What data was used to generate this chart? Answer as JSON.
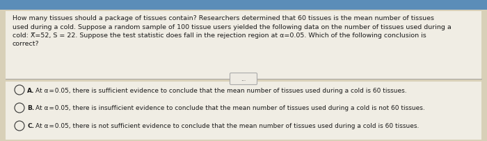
{
  "bg_color": "#d8d0b8",
  "panel_bg": "#e8e4da",
  "white_bg": "#f0ede4",
  "question_text": "How many tissues should a package of tissues contain? Researchers determined that 60 tissues is the mean number of tissues\nused during a cold. Suppose a random sample of 100 tissue users yielded the following data on the number of tissues used during a\ncold: X̅=52, S = 22. Suppose the test statistic does fall in the rejection region at α=0.05. Which of the following conclusion is\ncorrect?",
  "divider_dots": "...",
  "options": [
    {
      "label": "A.",
      "text": "At α = 0.05, there is sufficient evidence to conclude that the mean number of tissues used during a cold is 60 tissues."
    },
    {
      "label": "B.",
      "text": "At α = 0.05, there is insufficient evidence to conclude that the mean number of tissues used during a cold is not 60 tissues."
    },
    {
      "label": "C.",
      "text": "At α = 0.05, there is not sufficient evidence to conclude that the mean number of tissues used during a cold is 60 tissues."
    }
  ],
  "question_fontsize": 6.8,
  "option_fontsize": 6.5,
  "text_color": "#1a1a1a",
  "circle_color": "#333333",
  "line_color": "#999999",
  "dot_color": "#444444",
  "top_bar_color": "#5b8db8"
}
